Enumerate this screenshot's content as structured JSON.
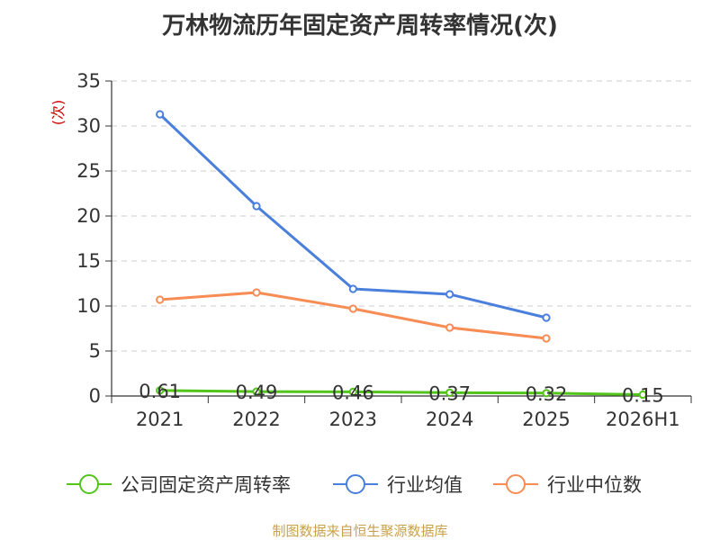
{
  "chart_data": {
    "type": "line",
    "title": "万林物流历年固定资产周转率情况(次)",
    "ylabel": "(次)",
    "ylim": [
      0,
      35
    ],
    "yticks": [
      0,
      5,
      10,
      15,
      20,
      25,
      30,
      35
    ],
    "grid": true,
    "legend_position": "bottom",
    "categories": [
      "2021",
      "2022",
      "2023",
      "2024",
      "2025",
      "2026H1"
    ],
    "series": [
      {
        "name": "公司固定资产周转率",
        "color": "#52c41a",
        "values": [
          0.61,
          0.49,
          0.46,
          0.37,
          0.32,
          0.15
        ],
        "labels": [
          "0.61",
          "0.49",
          "0.46",
          "0.37",
          "0.32",
          "0.15"
        ]
      },
      {
        "name": "行业均值",
        "color": "#4a7fdb",
        "values": [
          31.3,
          21.1,
          11.9,
          11.3,
          8.7,
          null
        ]
      },
      {
        "name": "行业中位数",
        "color": "#f78c55",
        "values": [
          10.7,
          11.5,
          9.7,
          7.6,
          6.4,
          null
        ]
      }
    ]
  },
  "colors": {
    "ylabel": "#cc0000",
    "source": "#c8a24a",
    "grid": "#cccccc",
    "axis": "#333333"
  },
  "source": "制图数据来自恒生聚源数据库"
}
